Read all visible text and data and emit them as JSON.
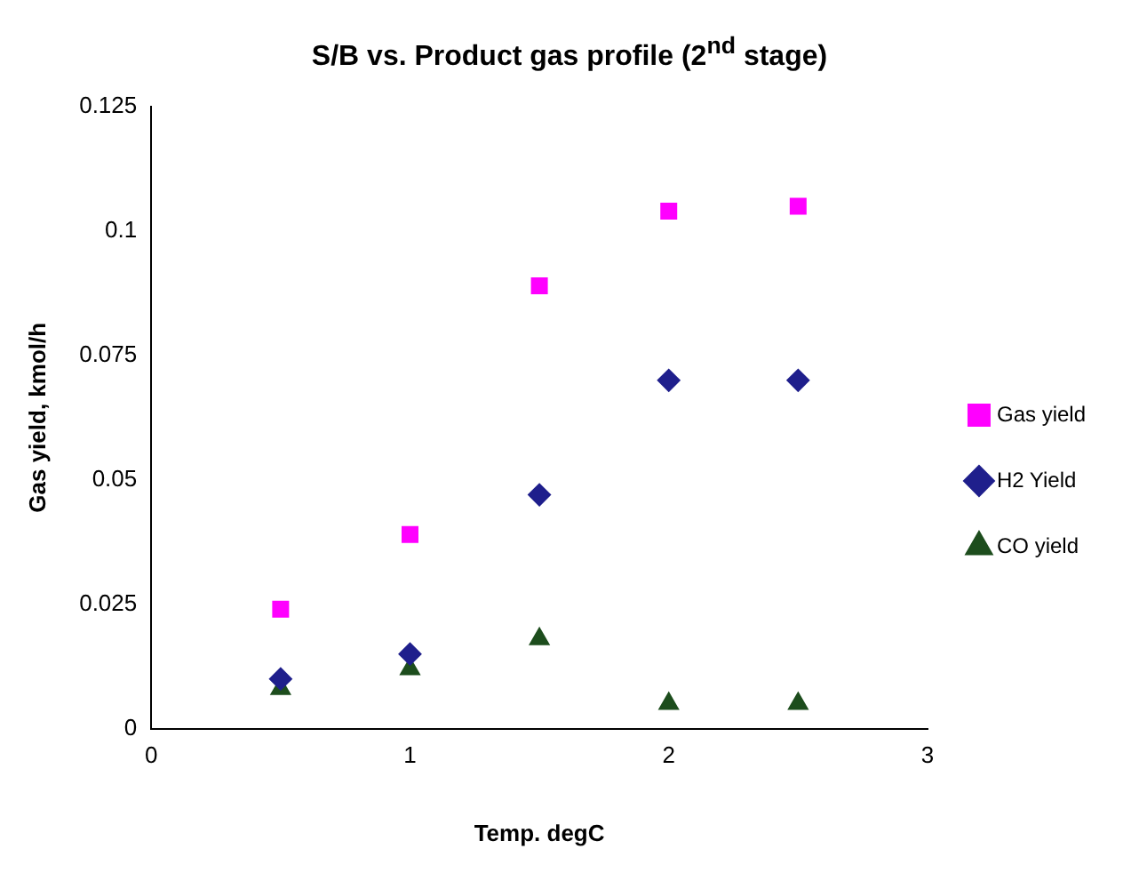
{
  "chart_data": {
    "type": "scatter",
    "title": "S/B vs. Product gas profile (2$^{nd}$ stage)",
    "xlabel": "Temp. degC",
    "ylabel": "Gas yield, kmol/h",
    "x": [
      0.5,
      1,
      1.5,
      2,
      2.5
    ],
    "series": [
      {
        "name": "Gas yield",
        "color": "#ff00ff",
        "marker": "square",
        "values": [
          0.024,
          0.039,
          0.089,
          0.104,
          0.105
        ]
      },
      {
        "name": "H2 Yield",
        "color": "#1f1f8c",
        "marker": "diamond",
        "values": [
          0.01,
          0.015,
          0.047,
          0.07,
          0.07
        ]
      },
      {
        "name": "CO yield",
        "color": "#1d4d1d",
        "marker": "triangle",
        "values": [
          0.008,
          0.012,
          0.018,
          0.005,
          0.005
        ]
      }
    ],
    "xlim": [
      0,
      3
    ],
    "xticks": [
      0,
      1,
      2,
      3
    ],
    "ylim": [
      0,
      0.125
    ],
    "yticks": [
      0,
      0.025,
      0.05,
      0.075,
      0.1,
      0.125
    ],
    "grid": false,
    "legend": "right"
  }
}
